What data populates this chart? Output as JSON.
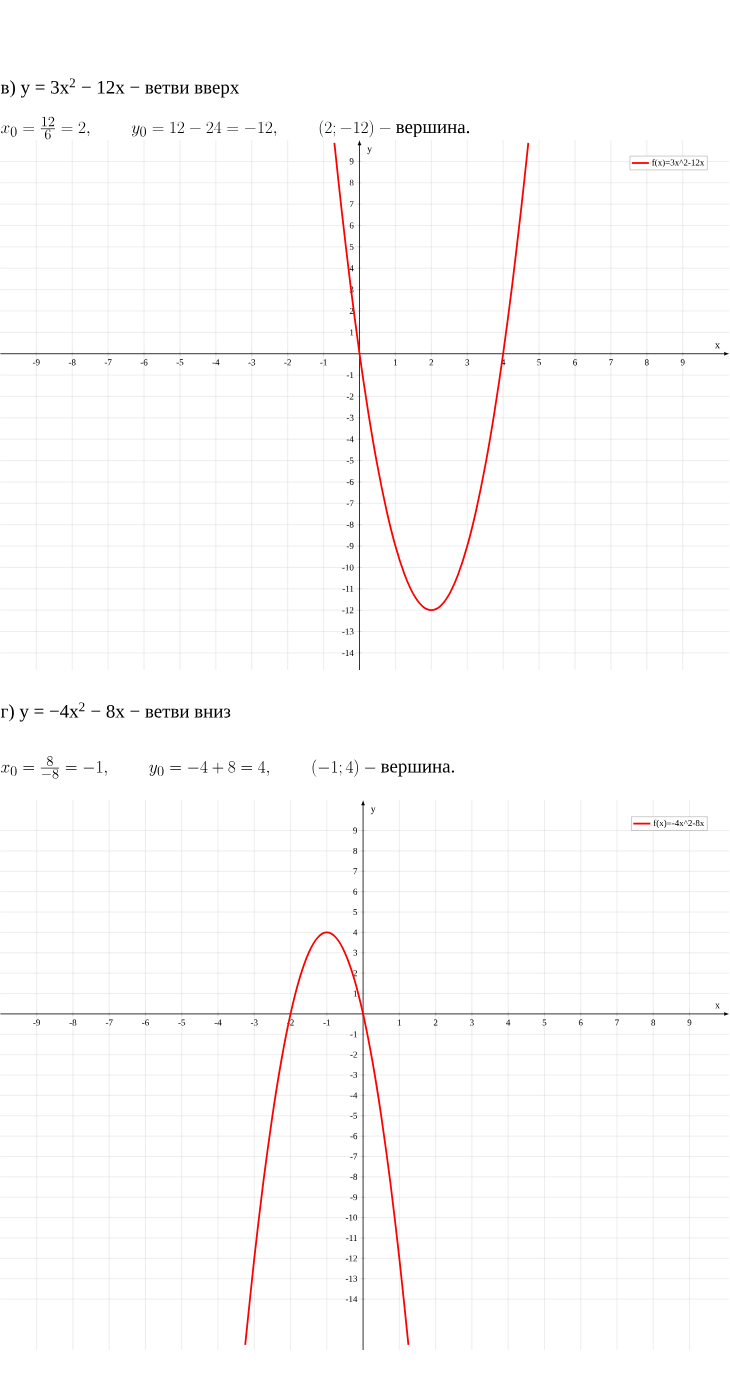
{
  "chart_data": [
    {
      "type": "line",
      "title": "в) y = 3x$^{2}$ − 12x − ветви вверх",
      "subtitle": "x_0=\\frac{12}{6}=2,\\qquad y_0=12-24=-12,\\qquad (2;-12)-\\text{вершина.}",
      "xlabel": "x",
      "ylabel": "y",
      "x": [
        -0.7,
        -0.5,
        -0.25,
        0,
        0.25,
        0.5,
        0.75,
        1,
        1.25,
        1.5,
        1.75,
        2,
        2.25,
        2.5,
        2.75,
        3,
        3.25,
        3.5,
        3.75,
        4,
        4.25,
        4.5,
        4.7
      ],
      "series": [
        {
          "name": "f(x)=3x^2-12x",
          "color": "#ff0000",
          "values": [
            9.87,
            6.75,
            3.19,
            0,
            -2.81,
            -5.25,
            -7.31,
            -9,
            -10.31,
            -11.25,
            -11.81,
            -12,
            -11.81,
            -11.25,
            -10.31,
            -9,
            -7.31,
            -5.25,
            -2.81,
            0,
            3.19,
            6.75,
            9.87
          ]
        }
      ],
      "xlim": [
        -10,
        10.3
      ],
      "ylim": [
        -14.8,
        10
      ],
      "xticks": [
        -9,
        -8,
        -7,
        -6,
        -5,
        -4,
        -3,
        -2,
        -1,
        1,
        2,
        3,
        4,
        5,
        6,
        7,
        8,
        9
      ],
      "yticks": [
        -14,
        -13,
        -12,
        -11,
        -10,
        -9,
        -8,
        -7,
        -6,
        -5,
        -4,
        -3,
        -2,
        -1,
        1,
        2,
        3,
        4,
        5,
        6,
        7,
        8,
        9
      ],
      "grid": true,
      "legend": "top right"
    },
    {
      "type": "line",
      "title": "г) y = −4x$^{2}$ − 8x − ветви вниз",
      "subtitle": "x_0=\\frac{8}{-8}=-1,\\qquad y_0=-4+8=4,\\qquad (-1;4)-\\text{вершина.}",
      "xlabel": "x",
      "ylabel": "y",
      "x": [
        -3.25,
        -3,
        -2.75,
        -2.5,
        -2.25,
        -2,
        -1.75,
        -1.5,
        -1.25,
        -1,
        -0.75,
        -0.5,
        -0.25,
        0,
        0.25,
        0.5,
        0.75,
        1,
        1.25
      ],
      "series": [
        {
          "name": "f(x)=-4x^2-8x",
          "color": "#ff0000",
          "values": [
            -16.25,
            -12,
            -8.25,
            -5,
            -2.25,
            0,
            1.75,
            3,
            3.75,
            4,
            3.75,
            3,
            1.75,
            0,
            -2.25,
            -5,
            -8.25,
            -12,
            -16.25
          ]
        }
      ],
      "xlim": [
        -10,
        10.1
      ],
      "ylim": [
        -16.5,
        10.5
      ],
      "xticks": [
        -9,
        -8,
        -7,
        -6,
        -5,
        -4,
        -3,
        -2,
        -1,
        1,
        2,
        3,
        4,
        5,
        6,
        7,
        8,
        9
      ],
      "yticks": [
        -14,
        -13,
        -12,
        -11,
        -10,
        -9,
        -8,
        -7,
        -6,
        -5,
        -4,
        -3,
        -2,
        -1,
        1,
        2,
        3,
        4,
        5,
        6,
        7,
        8,
        9
      ],
      "grid": true,
      "legend": "top right"
    }
  ]
}
